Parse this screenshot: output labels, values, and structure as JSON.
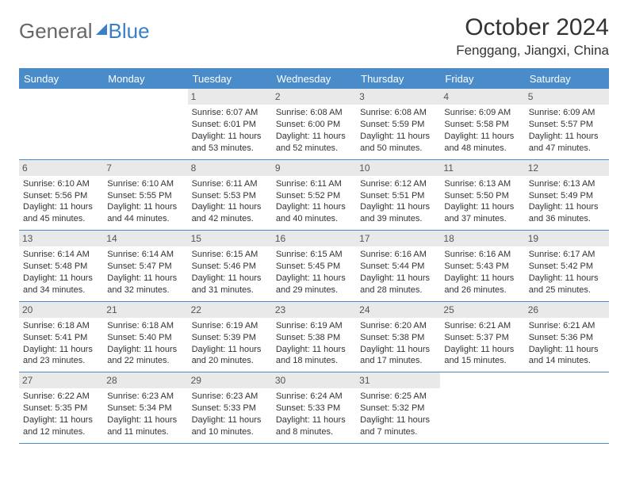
{
  "logo": {
    "part1": "General",
    "part2": "Blue"
  },
  "title": "October 2024",
  "location": "Fenggang, Jiangxi, China",
  "colors": {
    "header_bg": "#4a8cca",
    "header_text": "#ffffff",
    "daynum_bg": "#e9e9e9",
    "border": "#4a8cca"
  },
  "day_headers": [
    "Sunday",
    "Monday",
    "Tuesday",
    "Wednesday",
    "Thursday",
    "Friday",
    "Saturday"
  ],
  "weeks": [
    [
      {
        "n": "",
        "sr": "",
        "ss": "",
        "dl1": "",
        "dl2": ""
      },
      {
        "n": "",
        "sr": "",
        "ss": "",
        "dl1": "",
        "dl2": ""
      },
      {
        "n": "1",
        "sr": "Sunrise: 6:07 AM",
        "ss": "Sunset: 6:01 PM",
        "dl1": "Daylight: 11 hours",
        "dl2": "and 53 minutes."
      },
      {
        "n": "2",
        "sr": "Sunrise: 6:08 AM",
        "ss": "Sunset: 6:00 PM",
        "dl1": "Daylight: 11 hours",
        "dl2": "and 52 minutes."
      },
      {
        "n": "3",
        "sr": "Sunrise: 6:08 AM",
        "ss": "Sunset: 5:59 PM",
        "dl1": "Daylight: 11 hours",
        "dl2": "and 50 minutes."
      },
      {
        "n": "4",
        "sr": "Sunrise: 6:09 AM",
        "ss": "Sunset: 5:58 PM",
        "dl1": "Daylight: 11 hours",
        "dl2": "and 48 minutes."
      },
      {
        "n": "5",
        "sr": "Sunrise: 6:09 AM",
        "ss": "Sunset: 5:57 PM",
        "dl1": "Daylight: 11 hours",
        "dl2": "and 47 minutes."
      }
    ],
    [
      {
        "n": "6",
        "sr": "Sunrise: 6:10 AM",
        "ss": "Sunset: 5:56 PM",
        "dl1": "Daylight: 11 hours",
        "dl2": "and 45 minutes."
      },
      {
        "n": "7",
        "sr": "Sunrise: 6:10 AM",
        "ss": "Sunset: 5:55 PM",
        "dl1": "Daylight: 11 hours",
        "dl2": "and 44 minutes."
      },
      {
        "n": "8",
        "sr": "Sunrise: 6:11 AM",
        "ss": "Sunset: 5:53 PM",
        "dl1": "Daylight: 11 hours",
        "dl2": "and 42 minutes."
      },
      {
        "n": "9",
        "sr": "Sunrise: 6:11 AM",
        "ss": "Sunset: 5:52 PM",
        "dl1": "Daylight: 11 hours",
        "dl2": "and 40 minutes."
      },
      {
        "n": "10",
        "sr": "Sunrise: 6:12 AM",
        "ss": "Sunset: 5:51 PM",
        "dl1": "Daylight: 11 hours",
        "dl2": "and 39 minutes."
      },
      {
        "n": "11",
        "sr": "Sunrise: 6:13 AM",
        "ss": "Sunset: 5:50 PM",
        "dl1": "Daylight: 11 hours",
        "dl2": "and 37 minutes."
      },
      {
        "n": "12",
        "sr": "Sunrise: 6:13 AM",
        "ss": "Sunset: 5:49 PM",
        "dl1": "Daylight: 11 hours",
        "dl2": "and 36 minutes."
      }
    ],
    [
      {
        "n": "13",
        "sr": "Sunrise: 6:14 AM",
        "ss": "Sunset: 5:48 PM",
        "dl1": "Daylight: 11 hours",
        "dl2": "and 34 minutes."
      },
      {
        "n": "14",
        "sr": "Sunrise: 6:14 AM",
        "ss": "Sunset: 5:47 PM",
        "dl1": "Daylight: 11 hours",
        "dl2": "and 32 minutes."
      },
      {
        "n": "15",
        "sr": "Sunrise: 6:15 AM",
        "ss": "Sunset: 5:46 PM",
        "dl1": "Daylight: 11 hours",
        "dl2": "and 31 minutes."
      },
      {
        "n": "16",
        "sr": "Sunrise: 6:15 AM",
        "ss": "Sunset: 5:45 PM",
        "dl1": "Daylight: 11 hours",
        "dl2": "and 29 minutes."
      },
      {
        "n": "17",
        "sr": "Sunrise: 6:16 AM",
        "ss": "Sunset: 5:44 PM",
        "dl1": "Daylight: 11 hours",
        "dl2": "and 28 minutes."
      },
      {
        "n": "18",
        "sr": "Sunrise: 6:16 AM",
        "ss": "Sunset: 5:43 PM",
        "dl1": "Daylight: 11 hours",
        "dl2": "and 26 minutes."
      },
      {
        "n": "19",
        "sr": "Sunrise: 6:17 AM",
        "ss": "Sunset: 5:42 PM",
        "dl1": "Daylight: 11 hours",
        "dl2": "and 25 minutes."
      }
    ],
    [
      {
        "n": "20",
        "sr": "Sunrise: 6:18 AM",
        "ss": "Sunset: 5:41 PM",
        "dl1": "Daylight: 11 hours",
        "dl2": "and 23 minutes."
      },
      {
        "n": "21",
        "sr": "Sunrise: 6:18 AM",
        "ss": "Sunset: 5:40 PM",
        "dl1": "Daylight: 11 hours",
        "dl2": "and 22 minutes."
      },
      {
        "n": "22",
        "sr": "Sunrise: 6:19 AM",
        "ss": "Sunset: 5:39 PM",
        "dl1": "Daylight: 11 hours",
        "dl2": "and 20 minutes."
      },
      {
        "n": "23",
        "sr": "Sunrise: 6:19 AM",
        "ss": "Sunset: 5:38 PM",
        "dl1": "Daylight: 11 hours",
        "dl2": "and 18 minutes."
      },
      {
        "n": "24",
        "sr": "Sunrise: 6:20 AM",
        "ss": "Sunset: 5:38 PM",
        "dl1": "Daylight: 11 hours",
        "dl2": "and 17 minutes."
      },
      {
        "n": "25",
        "sr": "Sunrise: 6:21 AM",
        "ss": "Sunset: 5:37 PM",
        "dl1": "Daylight: 11 hours",
        "dl2": "and 15 minutes."
      },
      {
        "n": "26",
        "sr": "Sunrise: 6:21 AM",
        "ss": "Sunset: 5:36 PM",
        "dl1": "Daylight: 11 hours",
        "dl2": "and 14 minutes."
      }
    ],
    [
      {
        "n": "27",
        "sr": "Sunrise: 6:22 AM",
        "ss": "Sunset: 5:35 PM",
        "dl1": "Daylight: 11 hours",
        "dl2": "and 12 minutes."
      },
      {
        "n": "28",
        "sr": "Sunrise: 6:23 AM",
        "ss": "Sunset: 5:34 PM",
        "dl1": "Daylight: 11 hours",
        "dl2": "and 11 minutes."
      },
      {
        "n": "29",
        "sr": "Sunrise: 6:23 AM",
        "ss": "Sunset: 5:33 PM",
        "dl1": "Daylight: 11 hours",
        "dl2": "and 10 minutes."
      },
      {
        "n": "30",
        "sr": "Sunrise: 6:24 AM",
        "ss": "Sunset: 5:33 PM",
        "dl1": "Daylight: 11 hours",
        "dl2": "and 8 minutes."
      },
      {
        "n": "31",
        "sr": "Sunrise: 6:25 AM",
        "ss": "Sunset: 5:32 PM",
        "dl1": "Daylight: 11 hours",
        "dl2": "and 7 minutes."
      },
      {
        "n": "",
        "sr": "",
        "ss": "",
        "dl1": "",
        "dl2": ""
      },
      {
        "n": "",
        "sr": "",
        "ss": "",
        "dl1": "",
        "dl2": ""
      }
    ]
  ]
}
